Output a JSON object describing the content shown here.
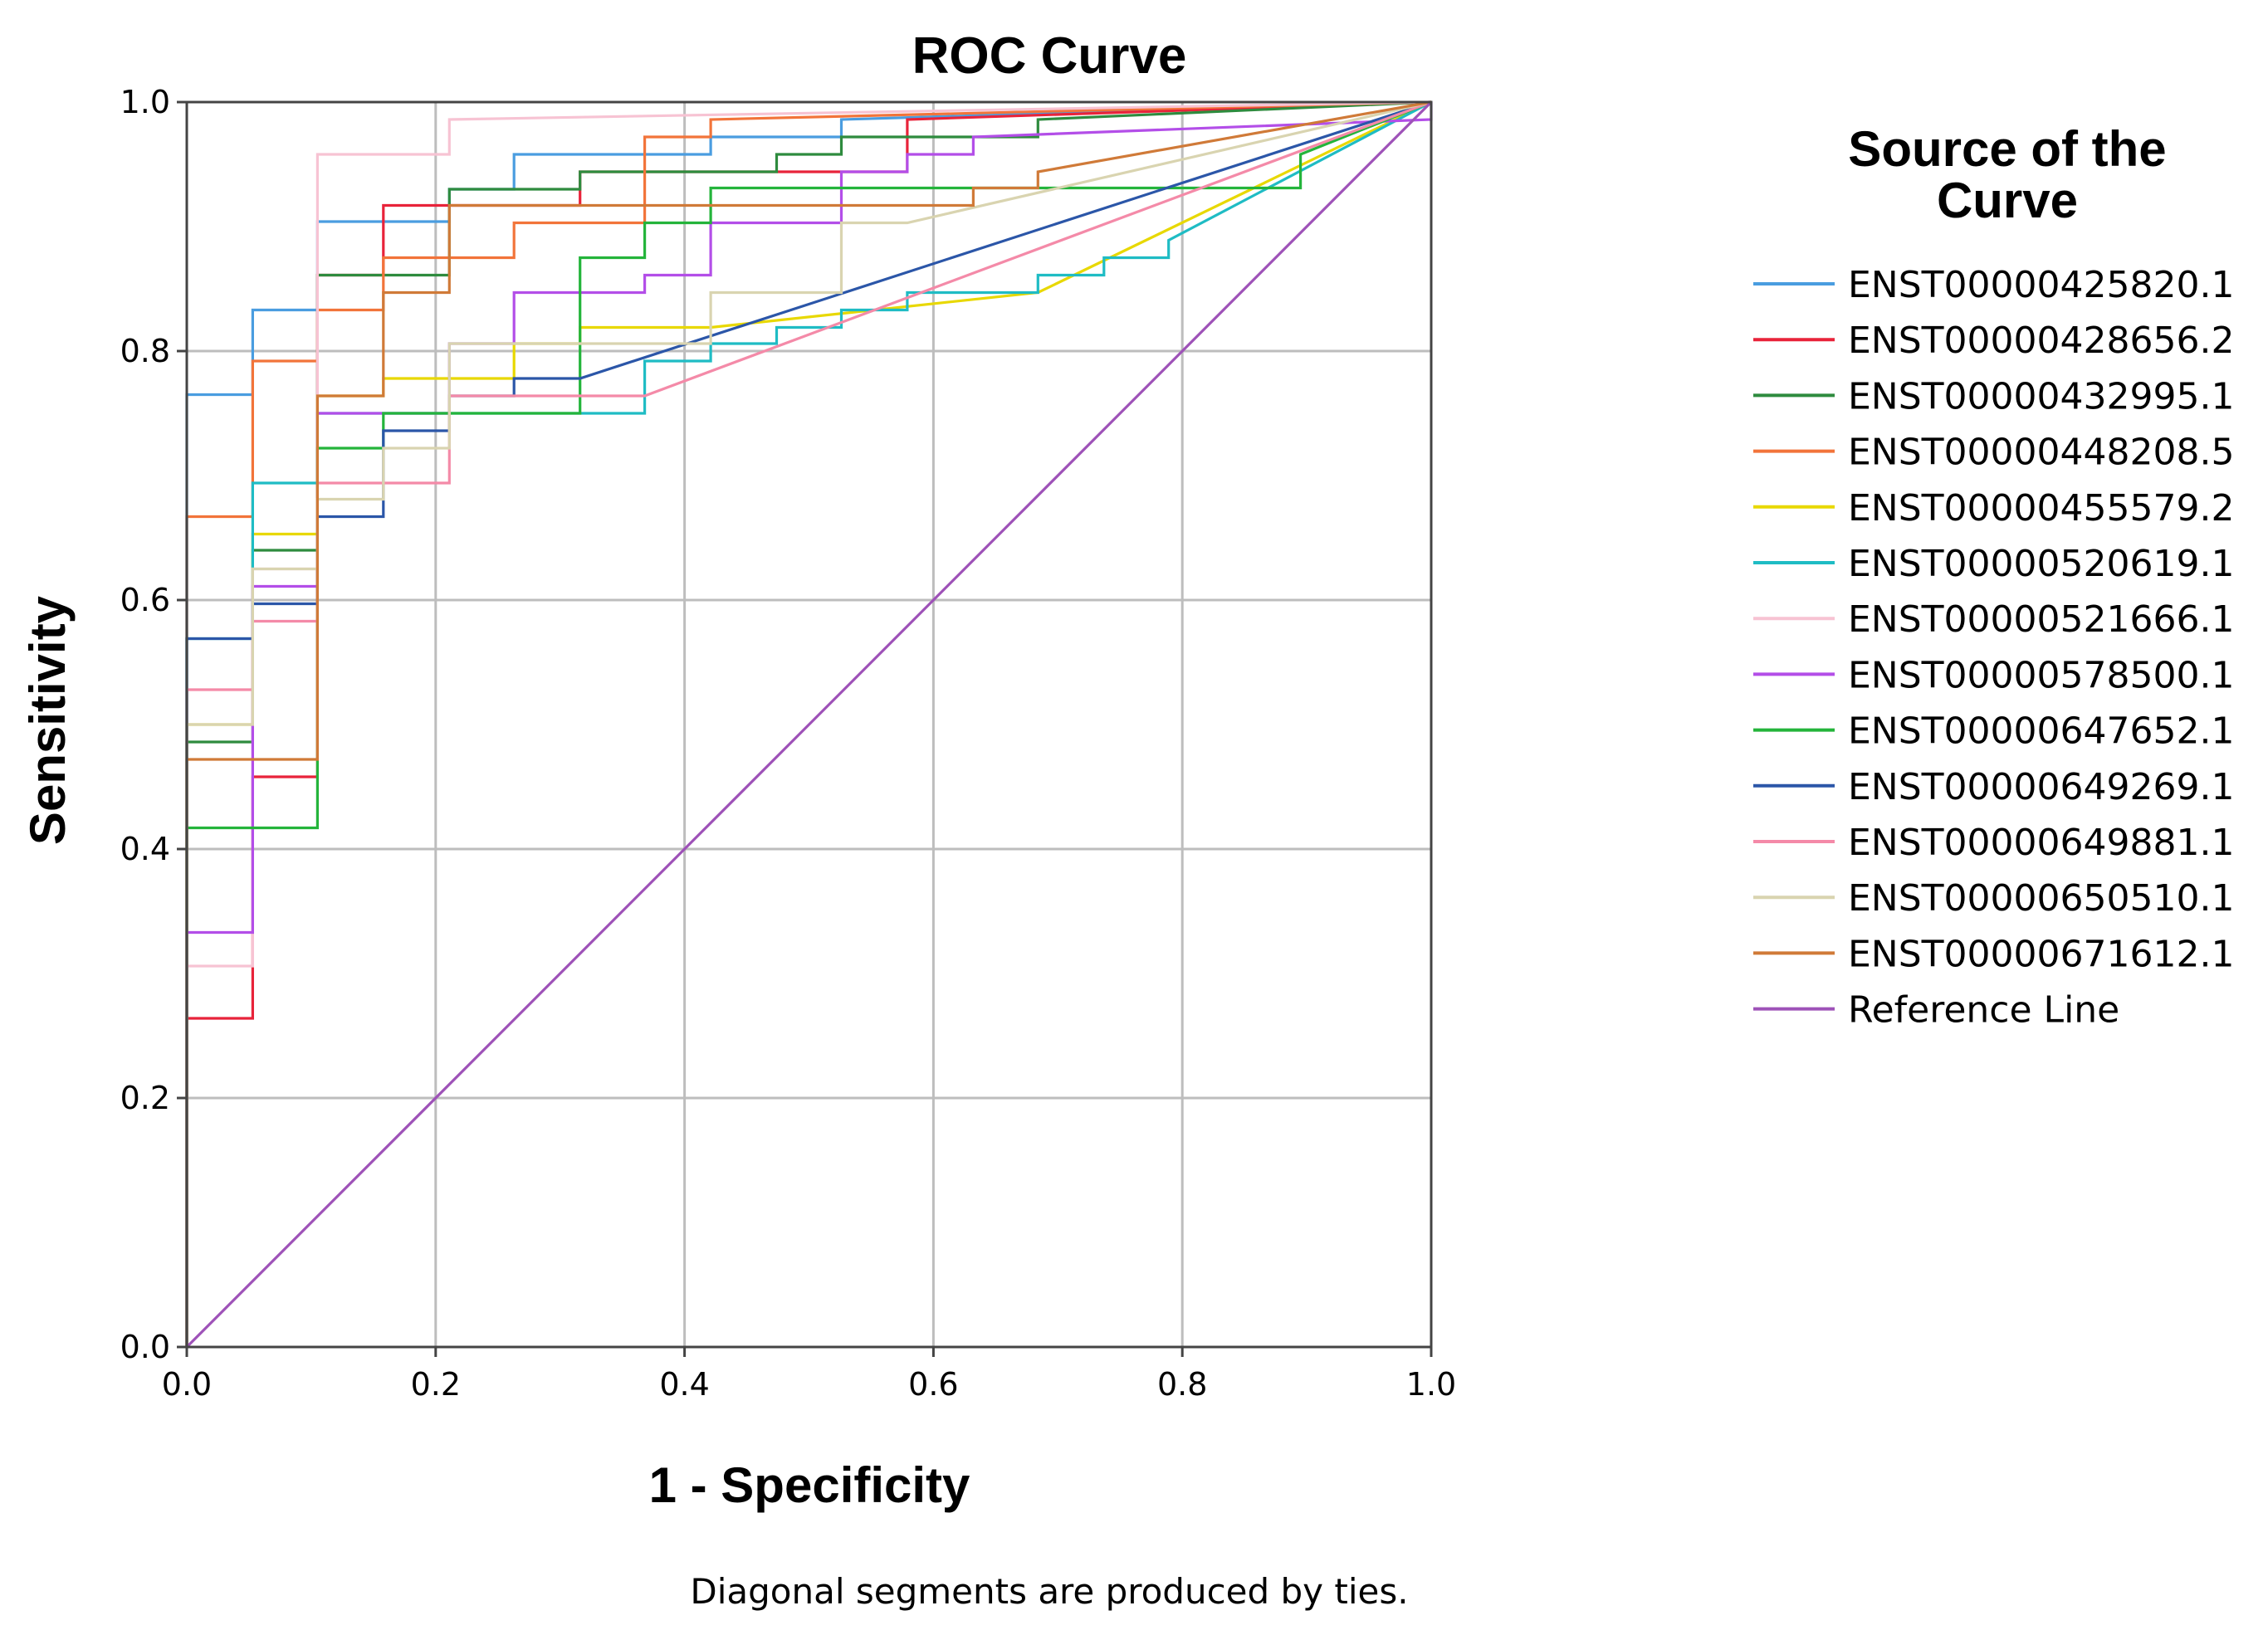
{
  "chart_data": {
    "type": "line",
    "title": "ROC Curve",
    "xlabel": "1 - Specificity",
    "ylabel": "Sensitivity",
    "xlim": [
      0,
      1
    ],
    "ylim": [
      0,
      1
    ],
    "x_ticks": [
      "0.0",
      "0.2",
      "0.4",
      "0.6",
      "0.8",
      "1.0"
    ],
    "y_ticks": [
      "0.0",
      "0.2",
      "0.4",
      "0.6",
      "0.8",
      "1.0"
    ],
    "grid": true,
    "legend_title": "Source of the Curve",
    "legend_title_lines": [
      "Source of the",
      "Curve"
    ],
    "legend_position": "right",
    "footnote": "Diagonal segments are produced by ties.",
    "series": [
      {
        "name": "ENST00000425820.1",
        "color": "#4a9de0",
        "points": [
          [
            0,
            0
          ],
          [
            0,
            0.765
          ],
          [
            0.053,
            0.765
          ],
          [
            0.053,
            0.833
          ],
          [
            0.105,
            0.833
          ],
          [
            0.105,
            0.904
          ],
          [
            0.211,
            0.904
          ],
          [
            0.211,
            0.93
          ],
          [
            0.263,
            0.93
          ],
          [
            0.263,
            0.958
          ],
          [
            0.421,
            0.958
          ],
          [
            0.421,
            0.972
          ],
          [
            0.526,
            0.972
          ],
          [
            0.526,
            0.986
          ],
          [
            1,
            1
          ]
        ]
      },
      {
        "name": "ENST00000428656.2",
        "color": "#e8233a",
        "points": [
          [
            0,
            0
          ],
          [
            0,
            0.264
          ],
          [
            0.053,
            0.264
          ],
          [
            0.053,
            0.458
          ],
          [
            0.105,
            0.458
          ],
          [
            0.105,
            0.861
          ],
          [
            0.158,
            0.861
          ],
          [
            0.158,
            0.917
          ],
          [
            0.316,
            0.917
          ],
          [
            0.316,
            0.944
          ],
          [
            0.579,
            0.944
          ],
          [
            0.579,
            0.986
          ],
          [
            1,
            1
          ]
        ]
      },
      {
        "name": "ENST00000432995.1",
        "color": "#2e8b3e",
        "points": [
          [
            0,
            0
          ],
          [
            0,
            0.486
          ],
          [
            0.053,
            0.486
          ],
          [
            0.053,
            0.64
          ],
          [
            0.105,
            0.64
          ],
          [
            0.105,
            0.861
          ],
          [
            0.211,
            0.861
          ],
          [
            0.211,
            0.93
          ],
          [
            0.316,
            0.93
          ],
          [
            0.316,
            0.944
          ],
          [
            0.474,
            0.944
          ],
          [
            0.474,
            0.958
          ],
          [
            0.526,
            0.958
          ],
          [
            0.526,
            0.972
          ],
          [
            0.684,
            0.972
          ],
          [
            0.684,
            0.986
          ],
          [
            1,
            1
          ]
        ]
      },
      {
        "name": "ENST00000448208.5",
        "color": "#f2743a",
        "points": [
          [
            0,
            0
          ],
          [
            0,
            0.667
          ],
          [
            0.053,
            0.667
          ],
          [
            0.053,
            0.792
          ],
          [
            0.105,
            0.792
          ],
          [
            0.105,
            0.833
          ],
          [
            0.158,
            0.833
          ],
          [
            0.158,
            0.875
          ],
          [
            0.263,
            0.875
          ],
          [
            0.263,
            0.903
          ],
          [
            0.368,
            0.903
          ],
          [
            0.368,
            0.972
          ],
          [
            0.421,
            0.972
          ],
          [
            0.421,
            0.986
          ],
          [
            1,
            1
          ]
        ]
      },
      {
        "name": "ENST00000455579.2",
        "color": "#e8d800",
        "points": [
          [
            0,
            0
          ],
          [
            0,
            0.5
          ],
          [
            0.053,
            0.5
          ],
          [
            0.053,
            0.653
          ],
          [
            0.105,
            0.653
          ],
          [
            0.105,
            0.764
          ],
          [
            0.158,
            0.764
          ],
          [
            0.158,
            0.778
          ],
          [
            0.263,
            0.778
          ],
          [
            0.263,
            0.806
          ],
          [
            0.316,
            0.806
          ],
          [
            0.316,
            0.819
          ],
          [
            0.421,
            0.819
          ],
          [
            0.684,
            0.847
          ],
          [
            1,
            1
          ]
        ]
      },
      {
        "name": "ENST00000520619.1",
        "color": "#1fbcc4",
        "points": [
          [
            0,
            0
          ],
          [
            0,
            0.569
          ],
          [
            0.053,
            0.569
          ],
          [
            0.053,
            0.694
          ],
          [
            0.105,
            0.694
          ],
          [
            0.105,
            0.75
          ],
          [
            0.368,
            0.75
          ],
          [
            0.368,
            0.792
          ],
          [
            0.421,
            0.792
          ],
          [
            0.421,
            0.806
          ],
          [
            0.474,
            0.806
          ],
          [
            0.474,
            0.819
          ],
          [
            0.526,
            0.819
          ],
          [
            0.526,
            0.833
          ],
          [
            0.579,
            0.833
          ],
          [
            0.579,
            0.847
          ],
          [
            0.684,
            0.847
          ],
          [
            0.684,
            0.861
          ],
          [
            0.737,
            0.861
          ],
          [
            0.737,
            0.875
          ],
          [
            0.789,
            0.875
          ],
          [
            0.789,
            0.889
          ],
          [
            1,
            1
          ]
        ]
      },
      {
        "name": "ENST00000521666.1",
        "color": "#f7c3d3",
        "points": [
          [
            0,
            0
          ],
          [
            0,
            0.306
          ],
          [
            0.053,
            0.306
          ],
          [
            0.053,
            0.625
          ],
          [
            0.105,
            0.625
          ],
          [
            0.105,
            0.958
          ],
          [
            0.211,
            0.958
          ],
          [
            0.211,
            0.986
          ],
          [
            1,
            1
          ]
        ]
      },
      {
        "name": "ENST00000578500.1",
        "color": "#b34ee8",
        "points": [
          [
            0,
            0
          ],
          [
            0,
            0.333
          ],
          [
            0.053,
            0.333
          ],
          [
            0.053,
            0.611
          ],
          [
            0.105,
            0.611
          ],
          [
            0.105,
            0.75
          ],
          [
            0.211,
            0.75
          ],
          [
            0.211,
            0.806
          ],
          [
            0.263,
            0.806
          ],
          [
            0.263,
            0.847
          ],
          [
            0.368,
            0.847
          ],
          [
            0.368,
            0.861
          ],
          [
            0.421,
            0.861
          ],
          [
            0.421,
            0.903
          ],
          [
            0.526,
            0.903
          ],
          [
            0.526,
            0.944
          ],
          [
            0.579,
            0.944
          ],
          [
            0.579,
            0.958
          ],
          [
            0.632,
            0.958
          ],
          [
            0.632,
            0.972
          ],
          [
            1,
            0.986
          ],
          [
            1,
            1
          ]
        ]
      },
      {
        "name": "ENST00000647652.1",
        "color": "#24b43b",
        "points": [
          [
            0,
            0
          ],
          [
            0,
            0.417
          ],
          [
            0.105,
            0.417
          ],
          [
            0.105,
            0.722
          ],
          [
            0.158,
            0.722
          ],
          [
            0.158,
            0.75
          ],
          [
            0.316,
            0.75
          ],
          [
            0.316,
            0.875
          ],
          [
            0.368,
            0.875
          ],
          [
            0.368,
            0.903
          ],
          [
            0.421,
            0.903
          ],
          [
            0.421,
            0.931
          ],
          [
            0.895,
            0.931
          ],
          [
            0.895,
            0.958
          ],
          [
            1,
            1
          ]
        ]
      },
      {
        "name": "ENST00000649269.1",
        "color": "#2b56a8",
        "points": [
          [
            0,
            0
          ],
          [
            0,
            0.569
          ],
          [
            0.053,
            0.569
          ],
          [
            0.053,
            0.597
          ],
          [
            0.105,
            0.597
          ],
          [
            0.105,
            0.667
          ],
          [
            0.158,
            0.667
          ],
          [
            0.158,
            0.736
          ],
          [
            0.211,
            0.736
          ],
          [
            0.211,
            0.764
          ],
          [
            0.263,
            0.764
          ],
          [
            0.263,
            0.778
          ],
          [
            0.316,
            0.778
          ],
          [
            1,
            1
          ]
        ]
      },
      {
        "name": "ENST00000649881.1",
        "color": "#f48aa8",
        "points": [
          [
            0,
            0
          ],
          [
            0,
            0.528
          ],
          [
            0.053,
            0.528
          ],
          [
            0.053,
            0.583
          ],
          [
            0.105,
            0.583
          ],
          [
            0.105,
            0.694
          ],
          [
            0.211,
            0.694
          ],
          [
            0.211,
            0.764
          ],
          [
            0.368,
            0.764
          ],
          [
            1,
            1
          ]
        ]
      },
      {
        "name": "ENST00000650510.1",
        "color": "#d9d4b0",
        "points": [
          [
            0,
            0
          ],
          [
            0,
            0.5
          ],
          [
            0.053,
            0.5
          ],
          [
            0.053,
            0.625
          ],
          [
            0.105,
            0.625
          ],
          [
            0.105,
            0.681
          ],
          [
            0.158,
            0.681
          ],
          [
            0.158,
            0.722
          ],
          [
            0.211,
            0.722
          ],
          [
            0.211,
            0.806
          ],
          [
            0.421,
            0.806
          ],
          [
            0.421,
            0.847
          ],
          [
            0.526,
            0.847
          ],
          [
            0.526,
            0.903
          ],
          [
            0.579,
            0.903
          ],
          [
            1,
            1
          ]
        ]
      },
      {
        "name": "ENST00000671612.1",
        "color": "#d07a38",
        "points": [
          [
            0,
            0
          ],
          [
            0,
            0.472
          ],
          [
            0.105,
            0.472
          ],
          [
            0.105,
            0.764
          ],
          [
            0.158,
            0.764
          ],
          [
            0.158,
            0.847
          ],
          [
            0.211,
            0.847
          ],
          [
            0.211,
            0.917
          ],
          [
            0.632,
            0.917
          ],
          [
            0.632,
            0.931
          ],
          [
            0.684,
            0.931
          ],
          [
            0.684,
            0.944
          ],
          [
            1,
            1
          ]
        ]
      },
      {
        "name": "Reference Line",
        "color": "#9e52b8",
        "points": [
          [
            0,
            0
          ],
          [
            1,
            1
          ]
        ]
      }
    ]
  }
}
